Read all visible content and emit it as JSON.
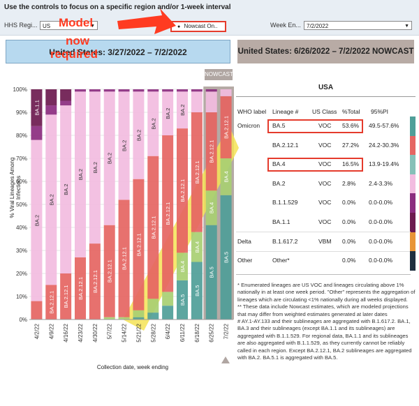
{
  "controls": {
    "title": "Use the controls to focus on a specific region and/or 1-week interval",
    "hhs_region_label": "HHS Regi...",
    "hhs_region_value": "US",
    "nowcast_option": "Nowcast On..",
    "week_label": "Week En...",
    "week_value": "7/2/2022"
  },
  "annotation": {
    "line1": "Model",
    "line2": "now",
    "line3": "required"
  },
  "banners": {
    "left": "United States: 3/27/2022 – 7/2/2022",
    "right": "United States: 6/26/2022 – 7/2/2022 NOWCAST",
    "nowcast_tag": "NOWCAST"
  },
  "colors": {
    "BA.5": "#4f9e98",
    "BA.4": "#a8cf72",
    "BA.2.12.1": "#e56562",
    "BA.2": "#f2bce0",
    "BA.1.1": "#6d1a4f",
    "B.1.1.529": "#8b2c7f",
    "Other": "#e89436",
    "highlight": "#f5e356"
  },
  "chart_data": {
    "type": "bar",
    "stacked": true,
    "categories": [
      "4/2/22",
      "4/9/22",
      "4/16/22",
      "4/23/22",
      "4/30/22",
      "5/7/22",
      "5/14/22",
      "5/21/22",
      "5/28/22",
      "6/4/22",
      "6/11/22",
      "6/18/22",
      "6/25/22",
      "7/2/22"
    ],
    "ylabel": "% Viral Lineages Among Infections",
    "xlabel": "Collection date, week ending",
    "y_ticks": [
      "0%",
      "10%",
      "20%",
      "30%",
      "40%",
      "50%",
      "60%",
      "70%",
      "80%",
      "90%",
      "100%"
    ],
    "ylim": [
      0,
      100
    ],
    "series": [
      {
        "name": "BA.5",
        "values": [
          0,
          0,
          0,
          0,
          0,
          0,
          0,
          1,
          3,
          6,
          17,
          25,
          41,
          54
        ]
      },
      {
        "name": "BA.4",
        "values": [
          0,
          0,
          0,
          0,
          0,
          1,
          1,
          3,
          6,
          6,
          12,
          13,
          15,
          16
        ]
      },
      {
        "name": "BA.2.12.1",
        "values": [
          8,
          15,
          20,
          27,
          33,
          40,
          51,
          57,
          62,
          68,
          54,
          52,
          34,
          27
        ]
      },
      {
        "name": "BA.2",
        "values": [
          70,
          74,
          73,
          72,
          66,
          58,
          47,
          38,
          28,
          19,
          16,
          9,
          9,
          3
        ]
      },
      {
        "name": "B.1.1.529",
        "values": [
          6,
          4,
          2,
          1,
          1,
          1,
          1,
          1,
          1,
          1,
          1,
          1,
          1,
          0
        ]
      },
      {
        "name": "BA.1.1",
        "values": [
          16,
          7,
          5,
          0,
          0,
          0,
          0,
          0,
          0,
          0,
          0,
          0,
          0,
          0
        ]
      }
    ],
    "bar_labels": [
      [
        "",
        "",
        "",
        "BA.2",
        "",
        "BA.1.1"
      ],
      [
        "",
        "",
        "BA.2.12.1",
        "BA.2",
        "",
        "BA.1.1"
      ],
      [
        "",
        "",
        "BA.2.12.1",
        "BA.2",
        "",
        ""
      ],
      [
        "",
        "",
        "BA.2.12.1",
        "BA.2",
        "",
        ""
      ],
      [
        "",
        "",
        "BA.2.12.1",
        "BA.2",
        "",
        ""
      ],
      [
        "",
        "",
        "BA.2.12.1",
        "BA.2",
        "",
        ""
      ],
      [
        "",
        "",
        "BA.2.12.1",
        "BA.2",
        "",
        ""
      ],
      [
        "",
        "",
        "BA.2.12.1",
        "BA.2",
        "",
        ""
      ],
      [
        "BA.5",
        "BA.4",
        "BA.2.12.1",
        "BA.2",
        "",
        ""
      ],
      [
        "BA.5",
        "BA.4",
        "BA.2.12.1",
        "BA.2",
        "",
        ""
      ],
      [
        "BA.5",
        "BA.4",
        "BA.2.12.1",
        "BA.2",
        "",
        ""
      ],
      [
        "BA.5",
        "BA.4",
        "BA.2.12.1",
        "",
        "",
        ""
      ],
      [
        "BA.5",
        "BA.4",
        "BA.2.12.1",
        "",
        "",
        ""
      ],
      [
        "BA.5",
        "BA.4",
        "BA.2.12.1",
        "",
        "",
        ""
      ]
    ]
  },
  "table": {
    "region": "USA",
    "headers": [
      "WHO label",
      "Lineage #",
      "US Class",
      "%Total",
      "95%PI"
    ],
    "rows": [
      {
        "who": "Omicron",
        "lineage": "BA.5",
        "class": "VOC",
        "total": "53.6%",
        "pi": "49.5-57.6%",
        "color": "#4f9e98",
        "boxed": true
      },
      {
        "who": "",
        "lineage": "BA.2.12.1",
        "class": "VOC",
        "total": "27.2%",
        "pi": "24.2-30.3%",
        "color": "#e56562",
        "boxed": false
      },
      {
        "who": "",
        "lineage": "BA.4",
        "class": "VOC",
        "total": "16.5%",
        "pi": "13.9-19.4%",
        "color": "#86c0b8",
        "boxed": true
      },
      {
        "who": "",
        "lineage": "BA.2",
        "class": "VOC",
        "total": "2.8%",
        "pi": "2.4-3.3%",
        "color": "#f2bce0",
        "boxed": false
      },
      {
        "who": "",
        "lineage": "B.1.1.529",
        "class": "VOC",
        "total": "0.0%",
        "pi": "0.0-0.0%",
        "color": "#8b2c7f",
        "boxed": false
      },
      {
        "who": "",
        "lineage": "BA.1.1",
        "class": "VOC",
        "total": "0.0%",
        "pi": "0.0-0.0%",
        "color": "#6d1a4f",
        "boxed": false
      },
      {
        "who": "Delta",
        "lineage": "B.1.617.2",
        "class": "VBM",
        "total": "0.0%",
        "pi": "0.0-0.0%",
        "color": "#e89436",
        "boxed": false
      },
      {
        "who": "Other",
        "lineage": "Other*",
        "class": "",
        "total": "0.0%",
        "pi": "0.0-0.0%",
        "color": "#1f2f3f",
        "boxed": false
      }
    ]
  },
  "footnotes": {
    "f1": "*     Enumerated lineages are US VOC and lineages circulating above 1% nationally in at least one week period. \"Other\" represents the aggregation of lineages which are circulating <1% nationally during all weeks displayed.",
    "f2": "**       These data include Nowcast estimates, which are modeled projections that may differ from weighted estimates generated at later dates",
    "f3": "#     AY.1-AY.133 and their sublineages are aggregated with B.1.617.2. BA.1, BA.3 and their sublineages (except BA.1.1 and its sublineages) are aggregated with B.1.1.529. For regional data, BA.1.1 and its sublineages are also aggregated with B.1.1.529, as they currently cannot be reliably called in each region. Except BA.2.12.1, BA.2 sublineages are aggregated with BA.2. BA.5.1 is aggregated with BA.5."
  }
}
